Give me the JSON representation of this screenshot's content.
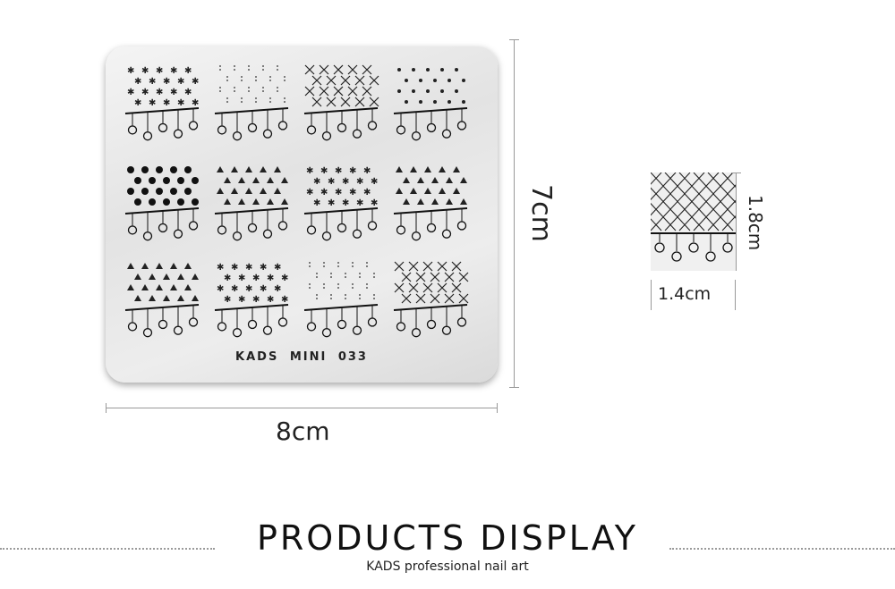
{
  "plate": {
    "label": "KADS   MINI   033"
  },
  "dimensions": {
    "width_label": "8cm",
    "height_label": "7cm",
    "design_height_label": "1.8cm",
    "design_width_label": "1.4cm"
  },
  "footer": {
    "title": "PRODUCTS DISPLAY",
    "subtitle": "KADS professional nail art"
  }
}
